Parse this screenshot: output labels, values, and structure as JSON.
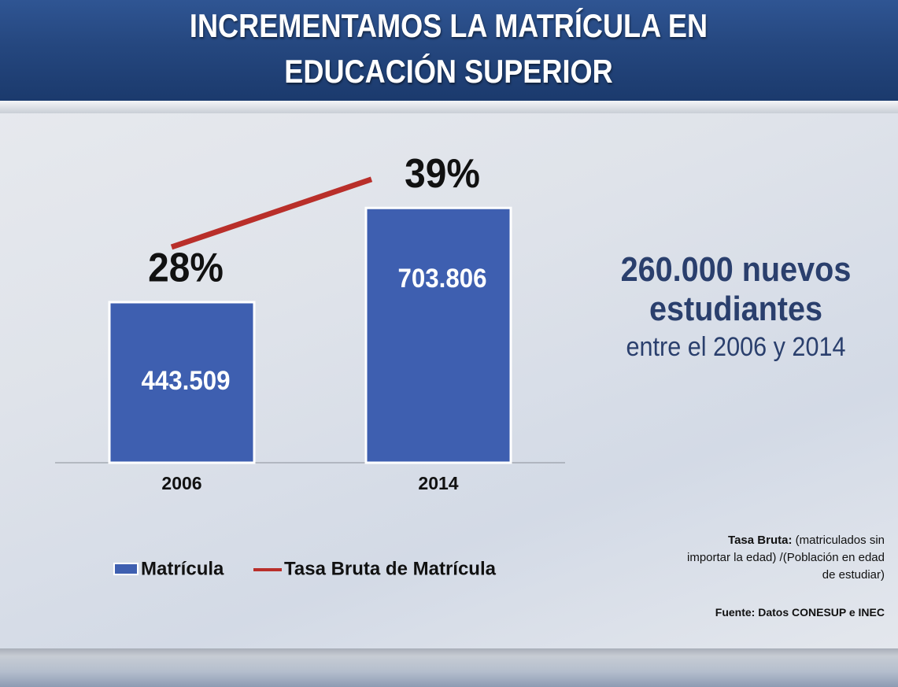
{
  "chart_data": {
    "type": "bar_line",
    "title": "INCREMENTAMOS LA MATRÍCULA EN EDUCACIÓN SUPERIOR",
    "categories": [
      "2006",
      "2014"
    ],
    "series": [
      {
        "name": "Matrícula",
        "type": "bar",
        "color": "#3e5fb0",
        "values": [
          443509,
          703806
        ],
        "value_labels": [
          "443.509",
          "703.806"
        ]
      },
      {
        "name": "Tasa Bruta de Matrícula",
        "type": "line",
        "axis": "y2",
        "color": "#b92f2a",
        "values": [
          28,
          39
        ],
        "value_labels": [
          "28%",
          "39%"
        ]
      }
    ],
    "ylim": [
      0,
      800000
    ],
    "y2lim": [
      -7,
      40
    ],
    "annotations": {
      "headline": "260.000 nuevos estudiantes",
      "subline": "entre el 2006 y 2014",
      "note_term": "Tasa Bruta:",
      "note_text": "(matriculados sin importar la edad) /(Población en edad de estudiar)",
      "source": "Fuente: Datos CONESUP e INEC"
    }
  }
}
